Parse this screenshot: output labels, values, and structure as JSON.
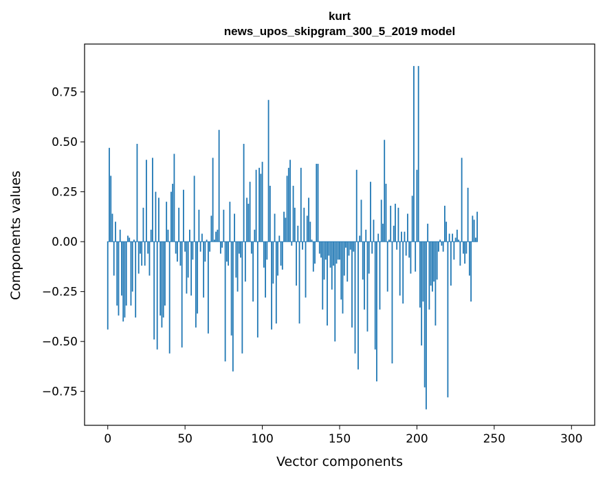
{
  "chart_data": {
    "type": "bar",
    "title": "kurt",
    "subtitle": "news_upos_skipgram_300_5_2019 model",
    "xlabel": "Vector components",
    "ylabel": "Components values",
    "xlim": [
      -15,
      315
    ],
    "ylim": [
      -0.92,
      0.99
    ],
    "xticks": [
      0,
      50,
      100,
      150,
      200,
      250,
      300
    ],
    "yticks": [
      -0.75,
      -0.5,
      -0.25,
      0.0,
      0.25,
      0.5,
      0.75
    ],
    "xtick_labels": [
      "0",
      "50",
      "100",
      "150",
      "200",
      "250",
      "300"
    ],
    "ytick_labels": [
      "−0.75",
      "−0.50",
      "−0.25",
      "0.00",
      "0.25",
      "0.50",
      "0.75"
    ],
    "bar_color": "#1f77b4",
    "grid": false,
    "values": [
      -0.44,
      0.47,
      0.33,
      0.14,
      -0.17,
      0.1,
      -0.32,
      -0.37,
      0.06,
      -0.27,
      -0.4,
      -0.38,
      -0.32,
      0.03,
      0.02,
      -0.32,
      -0.25,
      0.01,
      -0.38,
      0.49,
      -0.16,
      -0.06,
      -0.12,
      0.17,
      -0.12,
      0.41,
      -0.06,
      -0.17,
      0.06,
      0.42,
      -0.49,
      0.25,
      -0.54,
      0.22,
      -0.37,
      -0.43,
      -0.38,
      -0.32,
      0.2,
      0.06,
      -0.56,
      0.25,
      0.29,
      0.44,
      -0.06,
      -0.1,
      0.17,
      -0.12,
      -0.53,
      0.26,
      -0.05,
      -0.26,
      -0.18,
      0.06,
      -0.27,
      -0.09,
      0.33,
      -0.43,
      -0.36,
      0.16,
      -0.05,
      0.04,
      -0.28,
      -0.1,
      0.01,
      -0.46,
      -0.05,
      0.13,
      0.42,
      0.01,
      0.05,
      0.06,
      0.56,
      -0.06,
      -0.03,
      0.16,
      -0.6,
      -0.1,
      -0.12,
      0.2,
      -0.47,
      -0.65,
      0.14,
      -0.18,
      -0.25,
      -0.06,
      -0.08,
      -0.56,
      0.49,
      -0.2,
      0.22,
      0.19,
      0.3,
      -0.06,
      -0.3,
      0.06,
      0.36,
      -0.48,
      0.37,
      0.34,
      0.4,
      -0.13,
      -0.28,
      -0.09,
      0.71,
      0.28,
      -0.44,
      -0.21,
      0.14,
      -0.41,
      -0.17,
      0.03,
      -0.12,
      -0.14,
      0.15,
      0.12,
      0.33,
      0.37,
      0.41,
      -0.02,
      0.28,
      0.17,
      -0.22,
      0.08,
      -0.41,
      0.37,
      -0.04,
      0.17,
      -0.28,
      0.13,
      0.22,
      0.1,
      0.01,
      -0.15,
      -0.11,
      0.39,
      0.39,
      -0.06,
      -0.08,
      -0.34,
      -0.19,
      -0.09,
      -0.42,
      -0.07,
      -0.13,
      -0.24,
      -0.12,
      -0.5,
      -0.11,
      -0.09,
      -0.09,
      -0.29,
      -0.36,
      -0.17,
      -0.03,
      -0.2,
      -0.07,
      -0.04,
      -0.43,
      -0.05,
      -0.56,
      0.36,
      -0.64,
      0.03,
      0.21,
      -0.19,
      -0.34,
      0.06,
      -0.45,
      -0.16,
      0.3,
      -0.06,
      0.11,
      -0.54,
      -0.7,
      0.04,
      -0.34,
      0.21,
      0.09,
      0.51,
      0.29,
      -0.25,
      0.01,
      0.18,
      -0.61,
      0.08,
      0.19,
      -0.04,
      0.17,
      -0.27,
      0.05,
      -0.31,
      0.05,
      -0.07,
      0.14,
      -0.08,
      -0.16,
      0.23,
      0.88,
      -0.15,
      0.36,
      0.88,
      -0.33,
      -0.52,
      -0.3,
      -0.73,
      -0.84,
      0.09,
      -0.34,
      -0.22,
      -0.25,
      -0.2,
      -0.42,
      -0.19,
      -0.05,
      0.01,
      -0.02,
      -0.05,
      0.18,
      0.1,
      -0.78,
      0.04,
      -0.22,
      0.04,
      -0.09,
      0.02,
      0.06,
      0.01,
      -0.12,
      0.42,
      -0.06,
      -0.11,
      -0.06,
      0.27,
      -0.17,
      -0.3,
      0.13,
      0.11,
      0.02,
      0.15
    ]
  }
}
